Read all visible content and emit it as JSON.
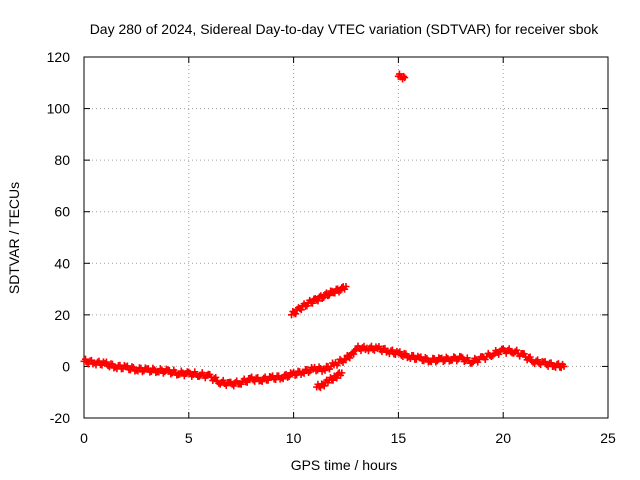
{
  "chart_data": {
    "type": "scatter",
    "title": "Day 280 of 2024, Sidereal Day-to-day VTEC variation (SDTVAR) for receiver sbok",
    "xlabel": "GPS time / hours",
    "ylabel": "SDTVAR / TECUs",
    "xlim": [
      0,
      25
    ],
    "ylim": [
      -20,
      120
    ],
    "x_ticks": [
      0,
      5,
      10,
      15,
      20,
      25
    ],
    "y_ticks": [
      -20,
      0,
      20,
      40,
      60,
      80,
      100,
      120
    ],
    "x_tick_labels": [
      "0",
      "5",
      "10",
      "15",
      "20",
      "25"
    ],
    "y_tick_labels": [
      "-20",
      "0",
      "20",
      "40",
      "60",
      "80",
      "100",
      "120"
    ],
    "grid": true,
    "point_color": "#ff0000",
    "marker": "plus",
    "series": [
      {
        "name": "main trace",
        "x": [
          0,
          0.5,
          1,
          1.5,
          2,
          2.5,
          3,
          3.5,
          4,
          4.5,
          5,
          5.5,
          6,
          6.5,
          7,
          7.5,
          8,
          8.5,
          9,
          9.5,
          10,
          10.5,
          11,
          11.5,
          12,
          12.5,
          12.8,
          13,
          13.5,
          14,
          14.5,
          15,
          15.5,
          16,
          16.5,
          17,
          17.5,
          18,
          18.5,
          19,
          19.5,
          20,
          20.5,
          21,
          21.5,
          22,
          22.5,
          22.9
        ],
        "y": [
          2,
          1.5,
          1,
          0,
          -0.5,
          -1,
          -1.5,
          -1.5,
          -2,
          -2.5,
          -3,
          -3,
          -4,
          -6,
          -7,
          -6,
          -5,
          -5,
          -4.5,
          -4,
          -3,
          -2,
          -1,
          -1,
          1,
          3,
          5,
          7,
          7,
          7,
          6,
          5,
          4,
          3,
          2.5,
          2.5,
          3,
          3,
          2,
          3,
          5,
          6,
          6,
          4,
          2,
          1,
          0.5,
          0
        ]
      },
      {
        "name": "upper segment",
        "x": [
          9.9,
          10.3,
          10.7,
          11.1,
          11.5,
          11.9,
          12.3,
          12.5
        ],
        "y": [
          20,
          22.5,
          24.5,
          26,
          27.5,
          29,
          30,
          31
        ]
      },
      {
        "name": "lower segment",
        "x": [
          11.1,
          11.4,
          11.7,
          12.0,
          12.3
        ],
        "y": [
          -8,
          -7,
          -5.5,
          -4,
          -2.5
        ]
      },
      {
        "name": "outlier cluster",
        "x": [
          15.0,
          15.15,
          15.3
        ],
        "y": [
          112.5,
          112.5,
          112
        ]
      }
    ]
  }
}
